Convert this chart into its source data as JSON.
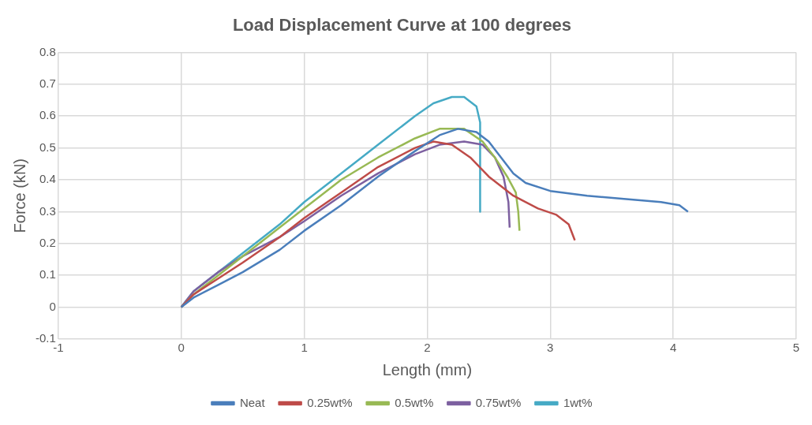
{
  "chart_data": {
    "type": "line",
    "title": "Load Displacement Curve at 100 degrees",
    "xlabel": "Length (mm)",
    "ylabel": "Force (kN)",
    "xlim": [
      -1,
      5
    ],
    "xticks": [
      -1,
      0,
      1,
      2,
      3,
      4,
      5
    ],
    "ylim": [
      -0.1,
      0.8
    ],
    "yticks": [
      -0.1,
      0,
      0.1,
      0.2,
      0.3,
      0.4,
      0.5,
      0.6,
      0.7,
      0.8
    ],
    "grid": true,
    "legend": "bottom",
    "marker": "none",
    "line_style": "solid",
    "series": [
      {
        "name": "Neat",
        "color": "#4a7ebb",
        "x": [
          0,
          0.1,
          0.3,
          0.5,
          0.8,
          1,
          1.3,
          1.6,
          1.9,
          2.1,
          2.25,
          2.4,
          2.5,
          2.6,
          2.7,
          2.8,
          3,
          3.3,
          3.6,
          3.9,
          4.05,
          4.12
        ],
        "values": [
          0,
          0.03,
          0.07,
          0.11,
          0.18,
          0.24,
          0.32,
          0.41,
          0.49,
          0.54,
          0.56,
          0.55,
          0.52,
          0.47,
          0.42,
          0.39,
          0.365,
          0.35,
          0.34,
          0.33,
          0.32,
          0.3
        ]
      },
      {
        "name": "0.25wt%",
        "color": "#be4b48",
        "x": [
          0,
          0.1,
          0.3,
          0.5,
          0.8,
          1,
          1.3,
          1.6,
          1.9,
          2.05,
          2.2,
          2.35,
          2.5,
          2.7,
          2.9,
          3.05,
          3.15,
          3.2
        ],
        "values": [
          0,
          0.04,
          0.09,
          0.14,
          0.22,
          0.28,
          0.36,
          0.44,
          0.5,
          0.52,
          0.51,
          0.47,
          0.41,
          0.35,
          0.31,
          0.29,
          0.26,
          0.21
        ]
      },
      {
        "name": "0.5wt%",
        "color": "#98b954",
        "x": [
          0,
          0.1,
          0.3,
          0.5,
          0.8,
          1,
          1.3,
          1.6,
          1.9,
          2.1,
          2.3,
          2.45,
          2.55,
          2.65,
          2.72,
          2.74,
          2.75
        ],
        "values": [
          0,
          0.04,
          0.1,
          0.16,
          0.25,
          0.31,
          0.4,
          0.47,
          0.53,
          0.56,
          0.56,
          0.52,
          0.47,
          0.41,
          0.36,
          0.3,
          0.24
        ]
      },
      {
        "name": "0.75wt%",
        "color": "#7d60a0",
        "x": [
          0,
          0.1,
          0.3,
          0.5,
          0.8,
          1,
          1.3,
          1.6,
          1.9,
          2.1,
          2.3,
          2.45,
          2.55,
          2.62,
          2.66,
          2.67
        ],
        "values": [
          0,
          0.05,
          0.11,
          0.16,
          0.22,
          0.27,
          0.35,
          0.42,
          0.48,
          0.51,
          0.52,
          0.51,
          0.47,
          0.41,
          0.33,
          0.25
        ]
      },
      {
        "name": "1wt%",
        "color": "#46aac5",
        "x": [
          0,
          0.1,
          0.3,
          0.5,
          0.8,
          1,
          1.3,
          1.6,
          1.9,
          2.05,
          2.2,
          2.3,
          2.4,
          2.43,
          2.43
        ],
        "values": [
          0,
          0.05,
          0.11,
          0.17,
          0.26,
          0.33,
          0.42,
          0.51,
          0.6,
          0.64,
          0.66,
          0.66,
          0.63,
          0.58,
          0.3
        ]
      }
    ]
  }
}
